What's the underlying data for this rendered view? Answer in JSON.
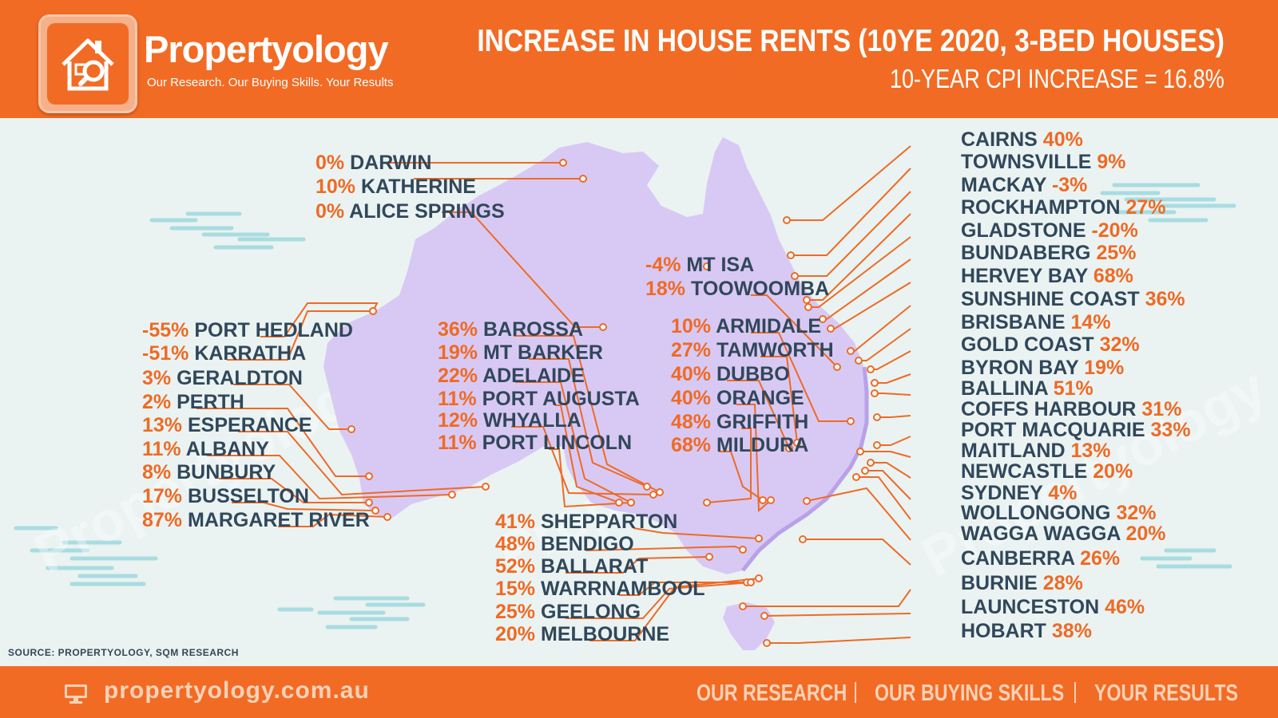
{
  "header": {
    "brand_name": "Propertyology",
    "tagline": "Our Research. Our Buying Skills. Your Results",
    "title": "INCREASE IN HOUSE RENTS (10YE 2020, 3-BED HOUSES)",
    "subtitle": "10-YEAR CPI INCREASE = 16.8%"
  },
  "source": "SOURCE: PROPERTYOLOGY, SQM RESEARCH",
  "watermark": "Propertyology",
  "footer": {
    "website": "propertyology.com.au",
    "links": [
      "OUR RESEARCH",
      "OUR BUYING SKILLS",
      "YOUR RESULTS"
    ]
  },
  "colors": {
    "accent": "#f26b24",
    "map": "#d8c9f4",
    "text": "#31475a",
    "value": "#ef6a24"
  },
  "regions": [
    {
      "pct": "0%",
      "name": "DARWIN",
      "value": 0
    },
    {
      "pct": "10%",
      "name": "KATHERINE",
      "value": 10
    },
    {
      "pct": "0%",
      "name": "ALICE SPRINGS",
      "value": 0
    },
    {
      "pct": "-55%",
      "name": "PORT HEDLAND",
      "value": -55
    },
    {
      "pct": "-51%",
      "name": "KARRATHA",
      "value": -51
    },
    {
      "pct": "3%",
      "name": "GERALDTON",
      "value": 3
    },
    {
      "pct": "2%",
      "name": "PERTH",
      "value": 2
    },
    {
      "pct": "13%",
      "name": "ESPERANCE",
      "value": 13
    },
    {
      "pct": "11%",
      "name": "ALBANY",
      "value": 11
    },
    {
      "pct": "8%",
      "name": "BUNBURY",
      "value": 8
    },
    {
      "pct": "17%",
      "name": "BUSSELTON",
      "value": 17
    },
    {
      "pct": "87%",
      "name": "MARGARET RIVER",
      "value": 87
    },
    {
      "pct": "36%",
      "name": "BAROSSA",
      "value": 36
    },
    {
      "pct": "19%",
      "name": "MT BARKER",
      "value": 19
    },
    {
      "pct": "22%",
      "name": "ADELAIDE",
      "value": 22
    },
    {
      "pct": "11%",
      "name": "PORT AUGUSTA",
      "value": 11
    },
    {
      "pct": "12%",
      "name": "WHYALLA",
      "value": 12
    },
    {
      "pct": "11%",
      "name": "PORT LINCOLN",
      "value": 11
    },
    {
      "pct": "-4%",
      "name": "MT ISA",
      "value": -4
    },
    {
      "pct": "18%",
      "name": "TOOWOOMBA",
      "value": 18
    },
    {
      "pct": "10%",
      "name": "ARMIDALE",
      "value": 10
    },
    {
      "pct": "27%",
      "name": "TAMWORTH",
      "value": 27
    },
    {
      "pct": "40%",
      "name": "DUBBO",
      "value": 40
    },
    {
      "pct": "40%",
      "name": "ORANGE",
      "value": 40
    },
    {
      "pct": "48%",
      "name": "GRIFFITH",
      "value": 48
    },
    {
      "pct": "68%",
      "name": "MILDURA",
      "value": 68
    },
    {
      "pct": "41%",
      "name": "SHEPPARTON",
      "value": 41
    },
    {
      "pct": "48%",
      "name": "BENDIGO",
      "value": 48
    },
    {
      "pct": "52%",
      "name": "BALLARAT",
      "value": 52
    },
    {
      "pct": "15%",
      "name": "WARRNAMBOOL",
      "value": 15
    },
    {
      "pct": "25%",
      "name": "GEELONG",
      "value": 25
    },
    {
      "pct": "20%",
      "name": "MELBOURNE",
      "value": 20
    },
    {
      "pct": "40%",
      "name": "CAIRNS",
      "value": 40
    },
    {
      "pct": "9%",
      "name": "TOWNSVILLE",
      "value": 9
    },
    {
      "pct": "-3%",
      "name": "MACKAY",
      "value": -3
    },
    {
      "pct": "27%",
      "name": "ROCKHAMPTON",
      "value": 27
    },
    {
      "pct": "-20%",
      "name": "GLADSTONE",
      "value": -20
    },
    {
      "pct": "25%",
      "name": "BUNDABERG",
      "value": 25
    },
    {
      "pct": "68%",
      "name": "HERVEY BAY",
      "value": 68
    },
    {
      "pct": "36%",
      "name": "SUNSHINE COAST",
      "value": 36
    },
    {
      "pct": "14%",
      "name": "BRISBANE",
      "value": 14
    },
    {
      "pct": "32%",
      "name": "GOLD COAST",
      "value": 32
    },
    {
      "pct": "19%",
      "name": "BYRON BAY",
      "value": 19
    },
    {
      "pct": "51%",
      "name": "BALLINA",
      "value": 51
    },
    {
      "pct": "31%",
      "name": "COFFS HARBOUR",
      "value": 31
    },
    {
      "pct": "33%",
      "name": "PORT MACQUARIE",
      "value": 33
    },
    {
      "pct": "13%",
      "name": "MAITLAND",
      "value": 13
    },
    {
      "pct": "20%",
      "name": "NEWCASTLE",
      "value": 20
    },
    {
      "pct": "4%",
      "name": "SYDNEY",
      "value": 4
    },
    {
      "pct": "32%",
      "name": "WOLLONGONG",
      "value": 32
    },
    {
      "pct": "20%",
      "name": "WAGGA WAGGA",
      "value": 20
    },
    {
      "pct": "26%",
      "name": "CANBERRA",
      "value": 26
    },
    {
      "pct": "28%",
      "name": "BURNIE",
      "value": 28
    },
    {
      "pct": "46%",
      "name": "LAUNCESTON",
      "value": 46
    },
    {
      "pct": "38%",
      "name": "HOBART",
      "value": 38
    }
  ]
}
